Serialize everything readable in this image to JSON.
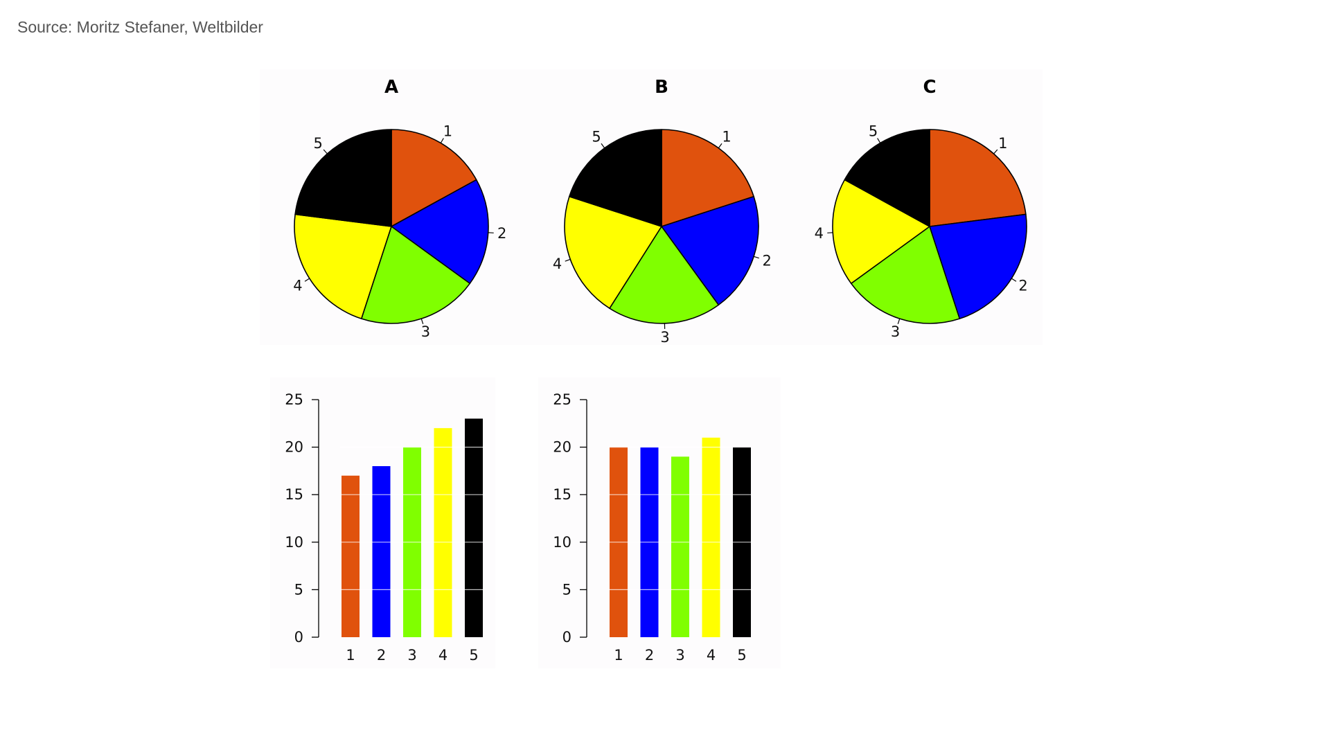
{
  "source": "Source: Moritz Stefaner, Weltbilder",
  "chart_data": [
    {
      "type": "pie",
      "title": "A",
      "categories": [
        "1",
        "2",
        "3",
        "4",
        "5"
      ],
      "values": [
        17,
        18,
        20,
        22,
        23
      ],
      "colors": [
        "#e0520d",
        "#0000ff",
        "#80ff00",
        "#ffff00",
        "#000000"
      ]
    },
    {
      "type": "pie",
      "title": "B",
      "categories": [
        "1",
        "2",
        "3",
        "4",
        "5"
      ],
      "values": [
        20,
        20,
        19,
        21,
        20
      ],
      "colors": [
        "#e0520d",
        "#0000ff",
        "#80ff00",
        "#ffff00",
        "#000000"
      ]
    },
    {
      "type": "pie",
      "title": "C",
      "categories": [
        "1",
        "2",
        "3",
        "4",
        "5"
      ],
      "values": [
        23,
        22,
        20,
        18,
        17
      ],
      "colors": [
        "#e0520d",
        "#0000ff",
        "#80ff00",
        "#ffff00",
        "#000000"
      ]
    },
    {
      "type": "bar",
      "title": "",
      "categories": [
        "1",
        "2",
        "3",
        "4",
        "5"
      ],
      "values": [
        17,
        18,
        20,
        22,
        23
      ],
      "colors": [
        "#e0520d",
        "#0000ff",
        "#80ff00",
        "#ffff00",
        "#000000"
      ],
      "ylim": [
        0,
        25
      ],
      "yticks": [
        0,
        5,
        10,
        15,
        20,
        25
      ],
      "grid": true
    },
    {
      "type": "bar",
      "title": "",
      "categories": [
        "1",
        "2",
        "3",
        "4",
        "5"
      ],
      "values": [
        20,
        20,
        19,
        21,
        20
      ],
      "colors": [
        "#e0520d",
        "#0000ff",
        "#80ff00",
        "#ffff00",
        "#000000"
      ],
      "ylim": [
        0,
        25
      ],
      "yticks": [
        0,
        5,
        10,
        15,
        20,
        25
      ],
      "grid": true
    }
  ]
}
